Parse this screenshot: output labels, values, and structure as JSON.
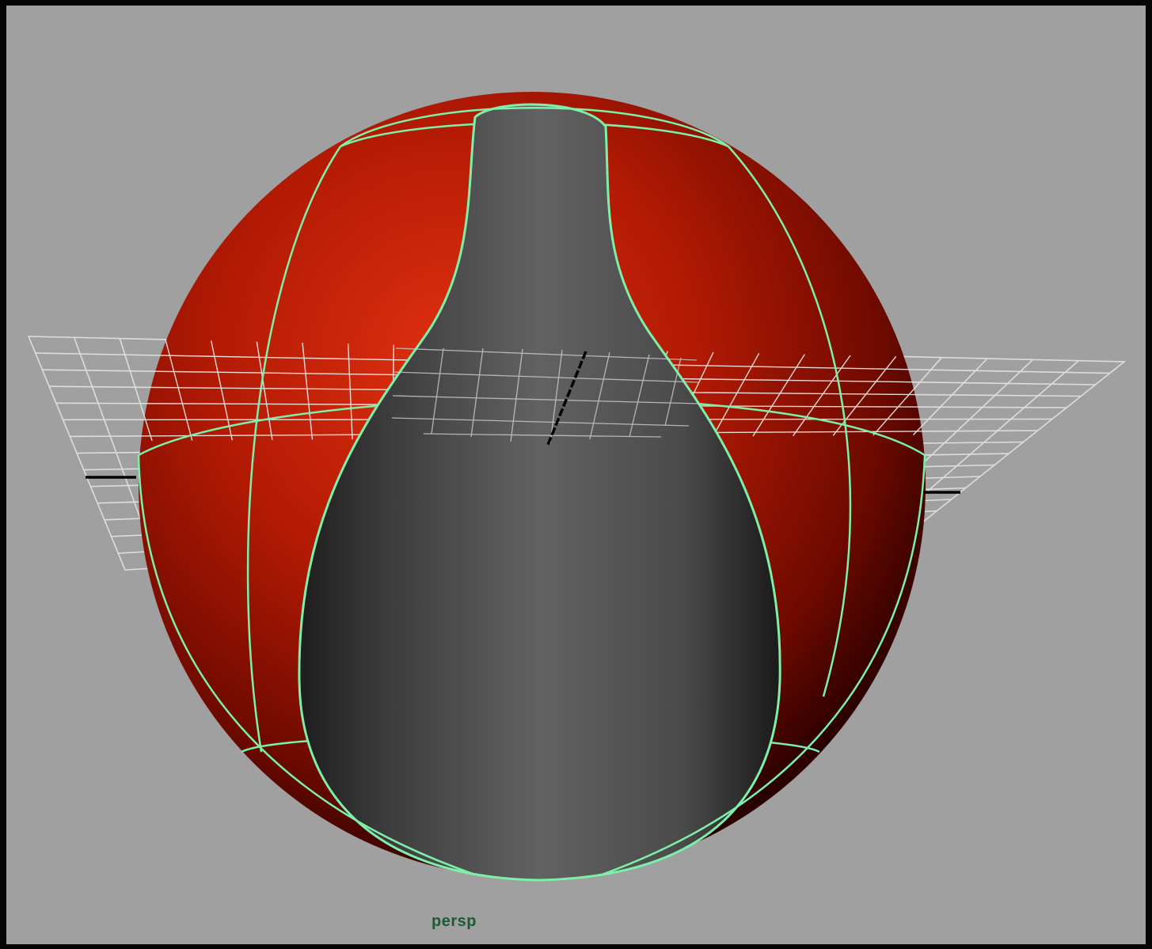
{
  "viewport": {
    "camera_name": "persp",
    "background_color": "#a0a0a0",
    "frame_color": "#050505"
  },
  "scene": {
    "objects": [
      {
        "name": "sphere",
        "type": "nurbs-sphere",
        "color": "#c81e06",
        "selected_edge_color": "#7cf0a8"
      },
      {
        "name": "trimmed-surface",
        "type": "nurbs-surface",
        "color": "#5e5e5e"
      },
      {
        "name": "grid-plane",
        "type": "construction-grid",
        "color": "#e6e6e6"
      }
    ],
    "highlight_color": "#7cf0a8",
    "camera_label_color": "#1d5a36"
  }
}
